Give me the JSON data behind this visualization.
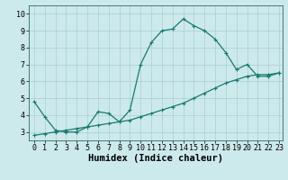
{
  "xlabel": "Humidex (Indice chaleur)",
  "ylabel": "",
  "bg_color": "#cce9ec",
  "grid_color": "#aacfd4",
  "line_color": "#1a7a6e",
  "xlim_min": -0.5,
  "xlim_max": 23.3,
  "ylim_min": 2.5,
  "ylim_max": 10.5,
  "xticks": [
    0,
    1,
    2,
    3,
    4,
    5,
    6,
    7,
    8,
    9,
    10,
    11,
    12,
    13,
    14,
    15,
    16,
    17,
    18,
    19,
    20,
    21,
    22,
    23
  ],
  "yticks": [
    3,
    4,
    5,
    6,
    7,
    8,
    9,
    10
  ],
  "curve1_x": [
    0,
    1,
    2,
    3,
    4,
    5,
    6,
    7,
    8,
    9,
    10,
    11,
    12,
    13,
    14,
    15,
    16,
    17,
    18,
    19,
    20,
    21,
    22,
    23
  ],
  "curve1_y": [
    4.8,
    3.9,
    3.1,
    3.0,
    3.0,
    3.3,
    4.2,
    4.1,
    3.6,
    4.3,
    7.0,
    8.3,
    9.0,
    9.1,
    9.7,
    9.3,
    9.0,
    8.5,
    7.7,
    6.7,
    7.0,
    6.3,
    6.3,
    6.5
  ],
  "curve2_x": [
    0,
    1,
    2,
    3,
    4,
    5,
    6,
    7,
    8,
    9,
    10,
    11,
    12,
    13,
    14,
    15,
    16,
    17,
    18,
    19,
    20,
    21,
    22,
    23
  ],
  "curve2_y": [
    2.8,
    2.9,
    3.0,
    3.1,
    3.2,
    3.3,
    3.4,
    3.5,
    3.6,
    3.7,
    3.9,
    4.1,
    4.3,
    4.5,
    4.7,
    5.0,
    5.3,
    5.6,
    5.9,
    6.1,
    6.3,
    6.4,
    6.4,
    6.5
  ],
  "marker": "+",
  "markersize": 3.5,
  "linewidth": 0.9,
  "xlabel_fontsize": 7.5,
  "tick_fontsize": 6.0
}
